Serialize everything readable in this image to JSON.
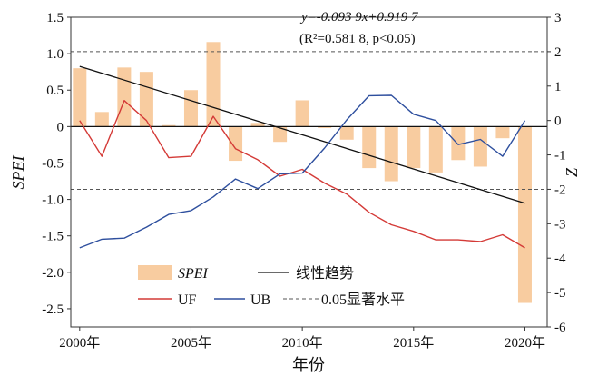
{
  "chart_data": {
    "type": "bar+line",
    "title": "",
    "x": [
      2000,
      2001,
      2002,
      2003,
      2004,
      2005,
      2006,
      2007,
      2008,
      2009,
      2010,
      2011,
      2012,
      2013,
      2014,
      2015,
      2016,
      2017,
      2018,
      2019,
      2020
    ],
    "series": [
      {
        "name": "SPEI",
        "kind": "bar",
        "axis": "left",
        "color": "#f7c38f",
        "values": [
          0.8,
          0.2,
          0.81,
          0.75,
          0.02,
          0.5,
          1.16,
          -0.47,
          0.05,
          -0.21,
          0.36,
          -0.02,
          -0.18,
          -0.57,
          -0.75,
          -0.57,
          -0.63,
          -0.46,
          -0.55,
          -0.16,
          -2.42
        ]
      },
      {
        "name": "UF",
        "kind": "line",
        "axis": "right",
        "color": "#d43a37",
        "values": [
          0.0,
          -1.04,
          0.58,
          0.0,
          -1.08,
          -1.04,
          0.12,
          -0.82,
          -1.14,
          -1.62,
          -1.42,
          -1.82,
          -2.14,
          -2.67,
          -3.03,
          -3.22,
          -3.47,
          -3.47,
          -3.52,
          -3.32,
          -3.7
        ]
      },
      {
        "name": "UB",
        "kind": "line",
        "axis": "right",
        "color": "#2e4f9e",
        "values": [
          -3.7,
          -3.45,
          -3.42,
          -3.1,
          -2.73,
          -2.62,
          -2.22,
          -1.7,
          -1.98,
          -1.55,
          -1.53,
          -0.8,
          0.02,
          0.72,
          0.73,
          0.18,
          0.0,
          -0.7,
          -0.55,
          -1.04,
          0.0
        ]
      },
      {
        "name": "线性趋势",
        "kind": "trend",
        "axis": "left",
        "color": "#111111",
        "slope": -0.0939,
        "intercept": 0.9197,
        "x_range": [
          2000,
          2020
        ]
      }
    ],
    "reference_lines": {
      "values": [
        2,
        -2
      ],
      "axis": "right",
      "style": "dashed",
      "label": "0.05显著水平"
    },
    "equation": {
      "line1": "y=-0.093 9x+0.919 7",
      "line2": "(R²=0.581 8, p<0.05)"
    },
    "xlabel": "年份",
    "ylabel_left": "SPEI",
    "ylabel_right": "Z",
    "xlim": [
      1999.6,
      2021.0
    ],
    "ylim_left": [
      -2.75,
      1.5
    ],
    "ylim_right": [
      -6,
      3
    ],
    "x_ticks": [
      2000,
      2005,
      2010,
      2015,
      2020
    ],
    "x_tick_labels": [
      "2000年",
      "2005年",
      "2010年",
      "2015年",
      "2020年"
    ],
    "y_left_ticks": [
      1.5,
      1.0,
      0.5,
      0,
      -0.5,
      -1.0,
      -1.5,
      -2.0,
      -2.5
    ],
    "y_left_tick_labels": [
      "1.5",
      "1.0",
      "0.5",
      "0",
      "-0.5",
      "-1.0",
      "-1.5",
      "-2.0",
      "-2.5"
    ],
    "y_right_ticks": [
      3,
      2,
      1,
      0,
      -1,
      -2,
      -3,
      -4,
      -5,
      -6
    ],
    "y_right_tick_labels": [
      "3",
      "2",
      "1",
      "0",
      "-1",
      "-2",
      "-3",
      "-4",
      "-5",
      "-6"
    ],
    "legend": {
      "position": "bottom-left",
      "items": [
        "SPEI",
        "线性趋势",
        "UF",
        "UB",
        "0.05显著水平"
      ]
    }
  }
}
